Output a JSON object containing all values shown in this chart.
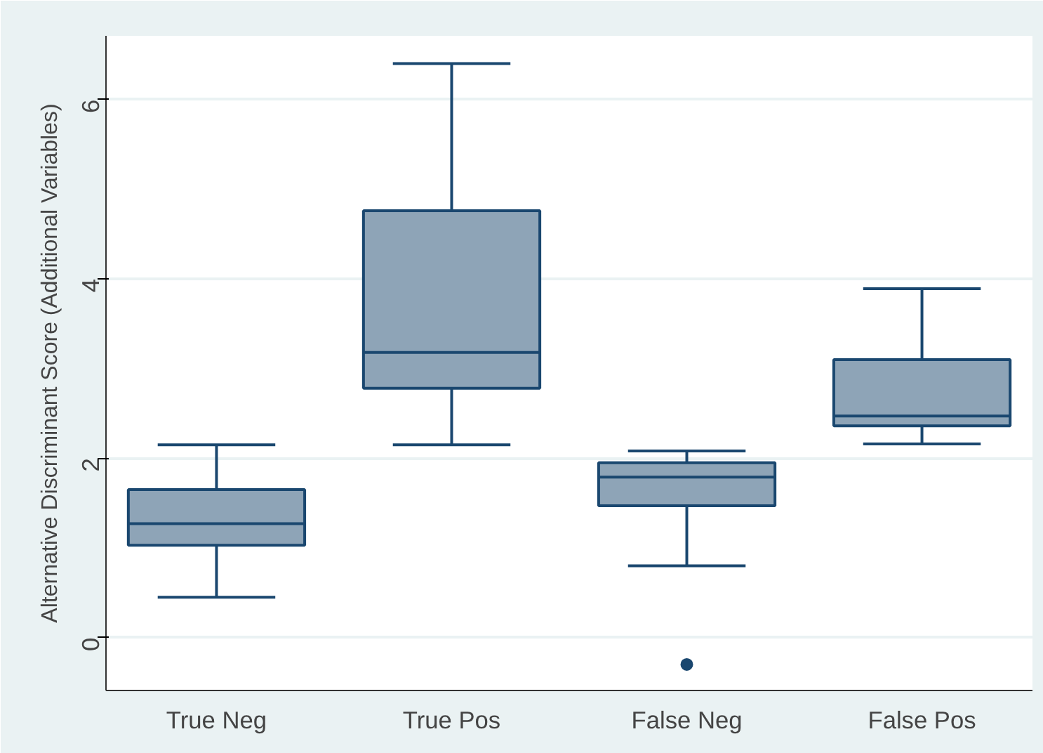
{
  "chart_data": {
    "type": "box",
    "ylabel": "Alternative Discriminant Score (Additional Variables)",
    "categories": [
      "True Neg",
      "True Pos",
      "False Neg",
      "False Pos"
    ],
    "boxes": [
      {
        "low": 0.45,
        "q1": 1.03,
        "median": 1.27,
        "q3": 1.65,
        "high": 2.15
      },
      {
        "low": 2.15,
        "q1": 2.78,
        "median": 3.18,
        "q3": 4.76,
        "high": 6.4
      },
      {
        "low": 0.8,
        "q1": 1.47,
        "median": 1.79,
        "q3": 1.95,
        "high": 2.08,
        "outliers": [
          -0.3
        ]
      },
      {
        "low": 2.16,
        "q1": 2.36,
        "median": 2.47,
        "q3": 3.1,
        "high": 3.89
      }
    ],
    "color": "#8ea4b7",
    "ylim": [
      -0.59,
      6.71
    ],
    "yticks": [
      0,
      2,
      4,
      6
    ],
    "grid": "y"
  }
}
